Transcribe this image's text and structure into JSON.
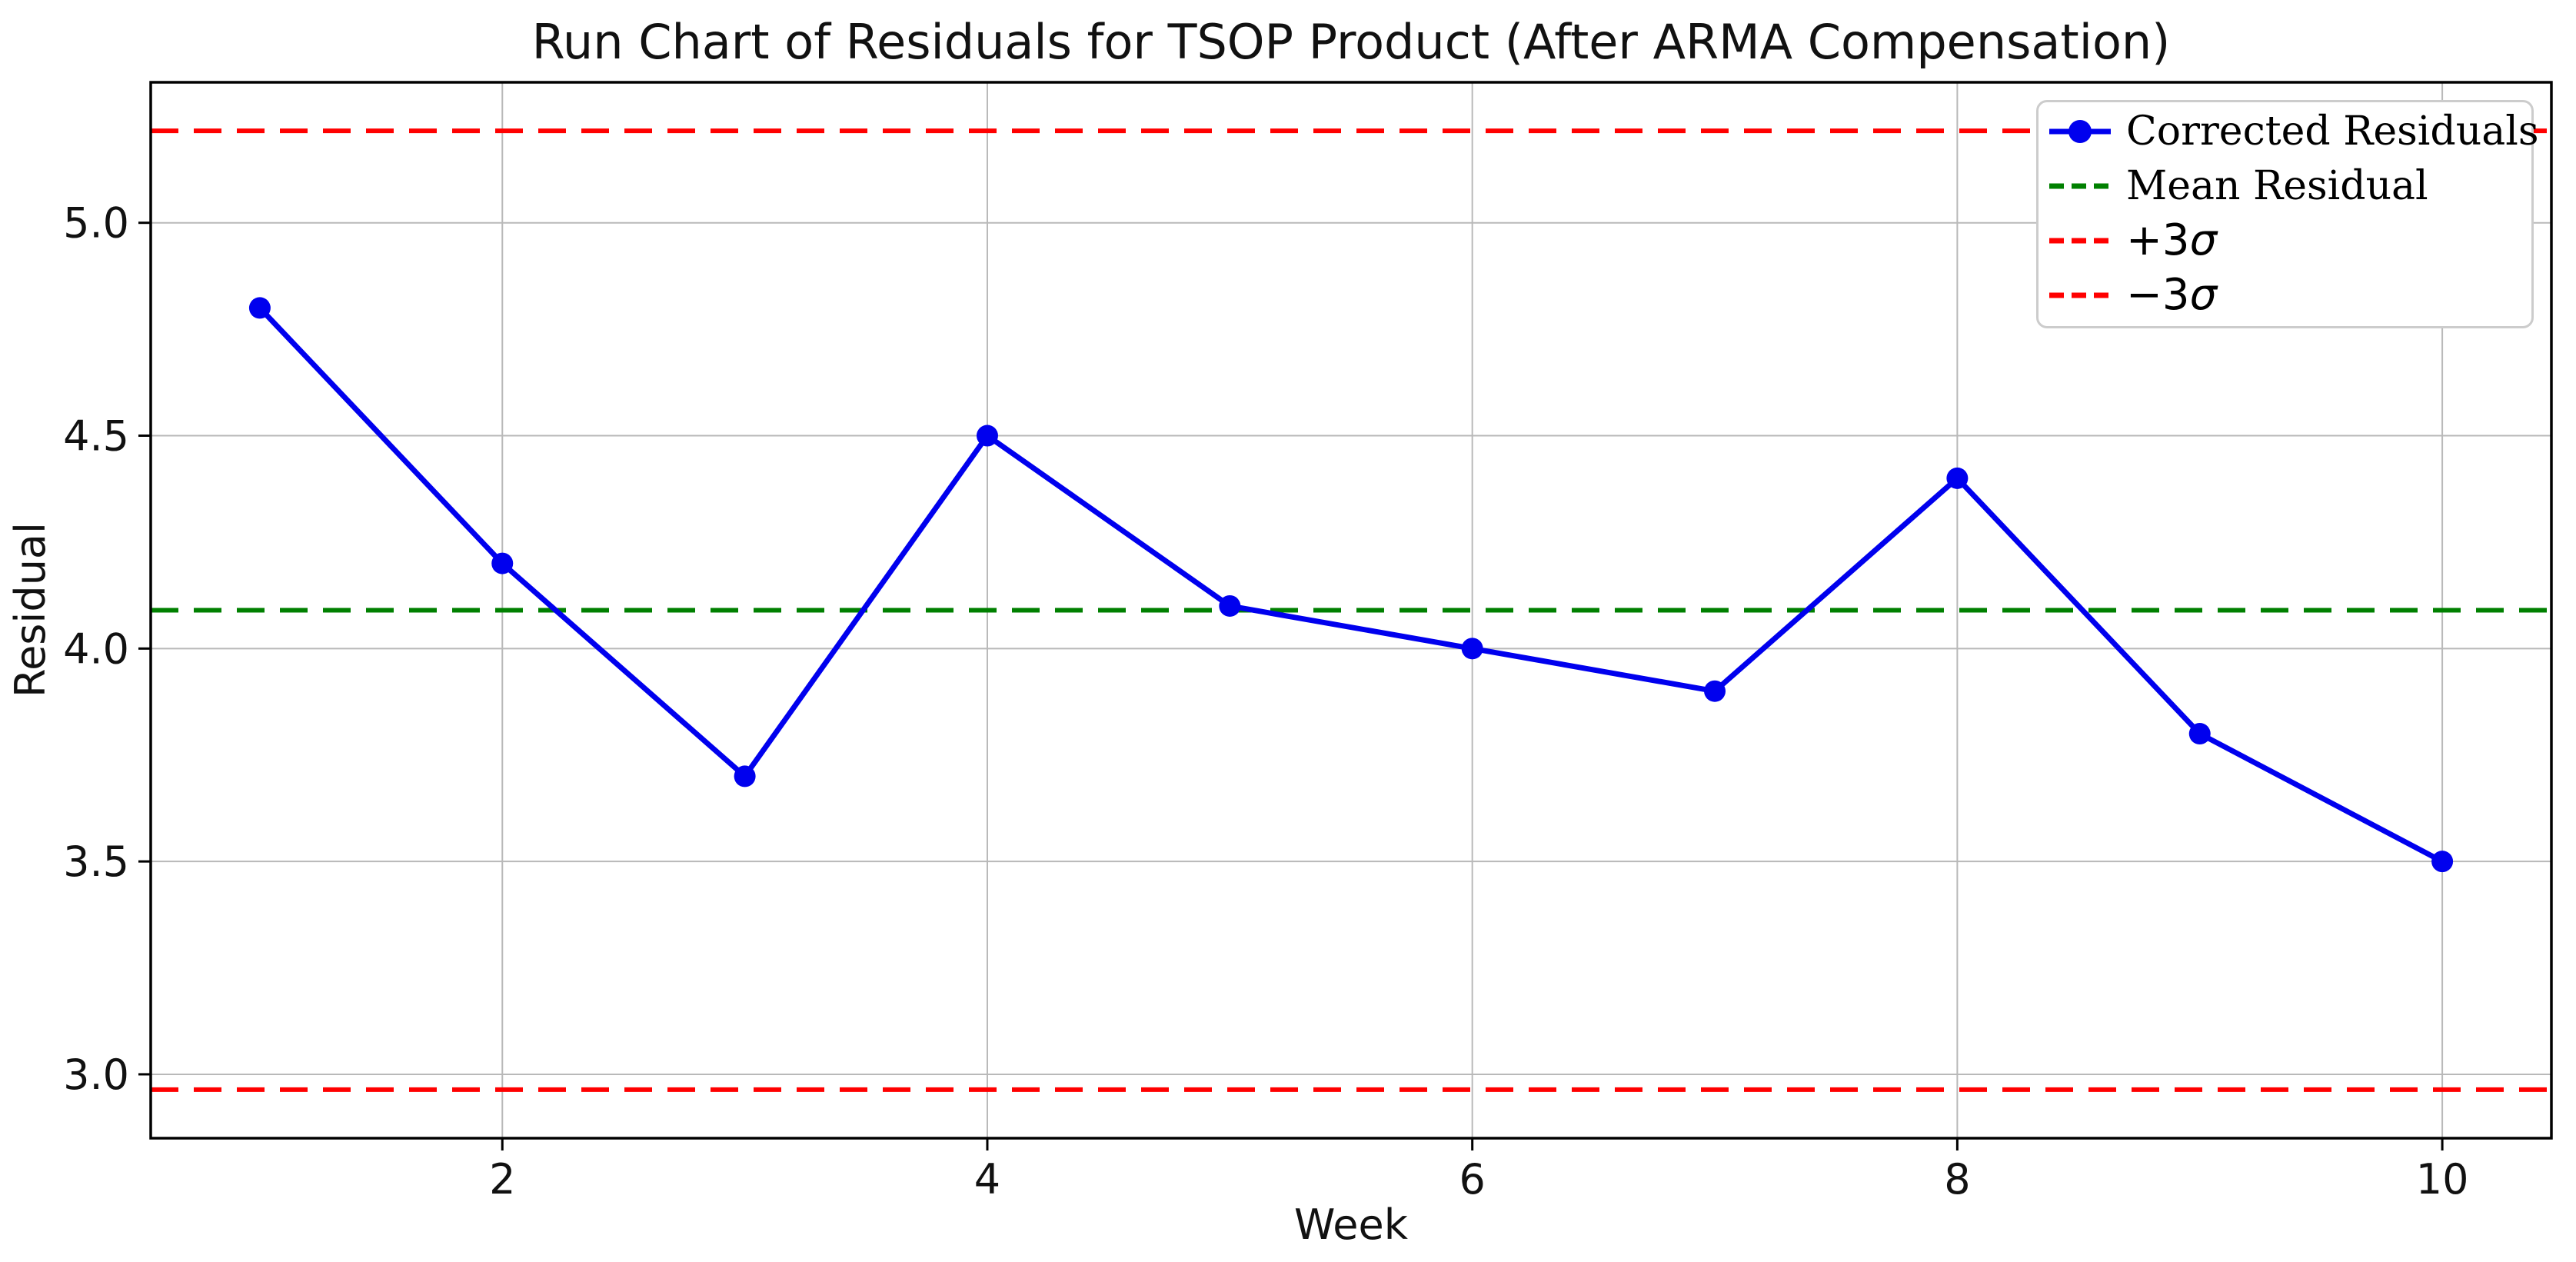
{
  "title": "Run Chart of Residuals for TSOP Product (After ARMA Compensation)",
  "chart_data": {
    "type": "line",
    "title": "Run Chart of Residuals for TSOP Product (After ARMA Compensation)",
    "xlabel": "Week",
    "ylabel": "Residual",
    "x": [
      1,
      2,
      3,
      4,
      5,
      6,
      7,
      8,
      9,
      10
    ],
    "series": [
      {
        "name": "Corrected Residuals",
        "values": [
          4.8,
          4.2,
          3.7,
          4.5,
          4.1,
          4.0,
          3.9,
          4.4,
          3.8,
          3.5
        ],
        "style": "solid",
        "marker": "circle"
      }
    ],
    "reference_lines": [
      {
        "name": "Mean Residual",
        "value": 4.09,
        "color_key": "mean",
        "style": "dashed"
      },
      {
        "name": "+3σ",
        "value": 5.216,
        "color_key": "sigma",
        "style": "dashed"
      },
      {
        "name": "−3σ",
        "value": 2.964,
        "color_key": "sigma",
        "style": "dashed"
      }
    ],
    "legend": [
      "Corrected Residuals",
      "Mean Residual",
      "+3σ",
      "−3σ"
    ],
    "legend_position": "upper right",
    "xticks": [
      2,
      4,
      6,
      8,
      10
    ],
    "yticks": [
      "3.0",
      "3.5",
      "4.0",
      "4.5",
      "5.0"
    ],
    "xlim": [
      0.55,
      10.45
    ],
    "ylim": [
      2.85,
      5.33
    ],
    "grid": true
  },
  "colors": {
    "series": "#0000ee",
    "mean": "#008000",
    "sigma": "#ff0000",
    "grid": "#b9b9b9",
    "spine": "#000000",
    "legend_border": "#cccccc",
    "text": "#111111"
  }
}
